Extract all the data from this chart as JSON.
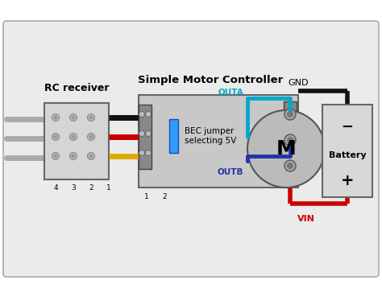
{
  "bg_color": "#e8e8e8",
  "rc_receiver_label": "RC receiver",
  "motor_controller_label": "Simple Motor Controller",
  "gnd_label": "GND",
  "vin_label": "VIN",
  "outa_label": "OUTA",
  "outb_label": "OUTB",
  "bec_label": "BEC jumper\nselecting 5V",
  "battery_label": "Battery",
  "motor_label": "M",
  "pin_labels": [
    "4",
    "3",
    "2",
    "1"
  ],
  "jumper_labels": [
    "1",
    "2"
  ],
  "wire_black_color": "#111111",
  "wire_red_color": "#cc0000",
  "wire_yellow_color": "#ddaa00",
  "wire_gnd_color": "#111111",
  "wire_vin_color": "#cc0000",
  "wire_outa_color": "#00aacc",
  "wire_outb_color": "#2233aa",
  "jumper_color": "#3399ff",
  "box_color": "#c8c8c8",
  "rc_box_color": "#d5d5d5",
  "battery_color": "#d8d8d8",
  "border_color": "#666666"
}
